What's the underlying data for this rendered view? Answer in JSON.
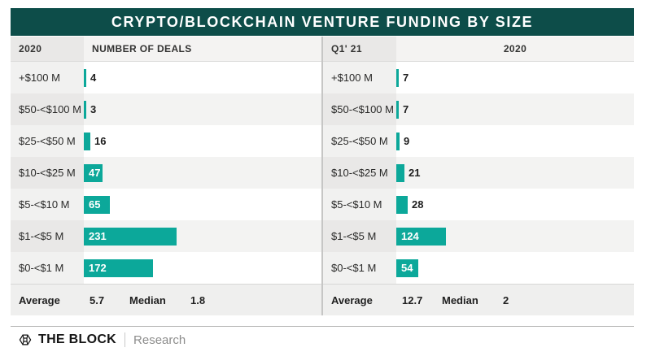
{
  "chart_data": {
    "type": "bar",
    "title": "CRYPTO/BLOCKCHAIN VENTURE FUNDING BY SIZE",
    "categories": [
      "+$100 M",
      "$50-<$100 M",
      "$25-<$50 M",
      "$10-<$25 M",
      "$5-<$10 M",
      "$1-<$5 M",
      "$0-<$1 M"
    ],
    "series": [
      {
        "name": "2020",
        "period_label": "2020",
        "axis_label": "NUMBER OF DEALS",
        "values": [
          4,
          3,
          16,
          47,
          65,
          231,
          172
        ],
        "average": "5.7",
        "median": "1.8"
      },
      {
        "name": "Q1' 21",
        "period_label": "Q1' 21",
        "axis_label": "2020",
        "values": [
          7,
          7,
          9,
          21,
          28,
          124,
          54
        ],
        "average": "12.7",
        "median": "2"
      }
    ],
    "xlabel": "NUMBER OF DEALS",
    "ylabel": "",
    "grid": false,
    "legend_position": "none",
    "bar_color": "#0ca89a",
    "title_bg_color": "#0d4d49"
  },
  "labels": {
    "average": "Average",
    "median": "Median"
  },
  "footer": {
    "brand": "THE BLOCK",
    "sub": "Research"
  }
}
